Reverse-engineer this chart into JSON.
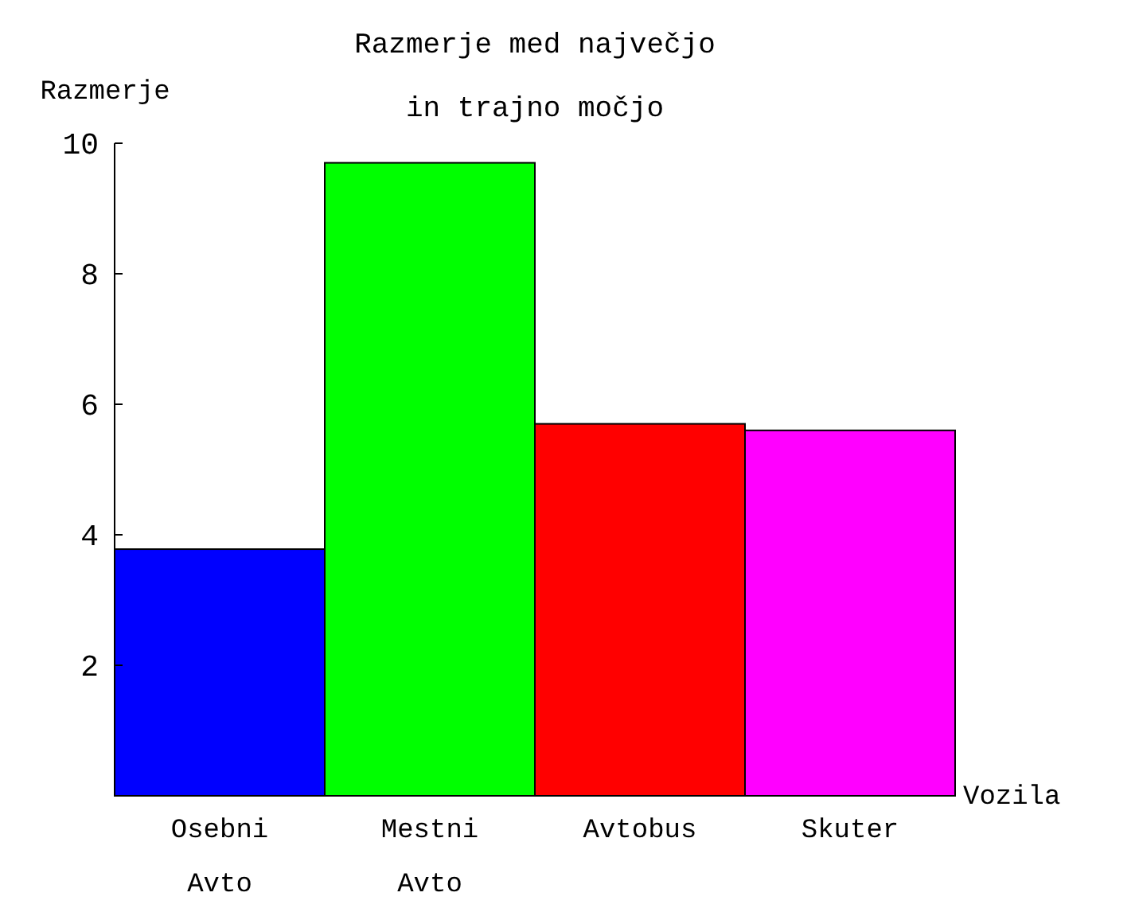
{
  "chart_data": {
    "type": "bar",
    "title": "Razmerje med največjo\nin trajno močjo",
    "xlabel": "Vozila",
    "ylabel": "Razmerje",
    "categories": [
      "Osebni Avto",
      "Mestni Avto",
      "Avtobus",
      "Skuter"
    ],
    "values": [
      3.78,
      9.7,
      5.7,
      5.6
    ],
    "colors": [
      "#0000ff",
      "#00ff00",
      "#ff0000",
      "#ff00ff"
    ],
    "ylim": [
      0,
      10
    ],
    "yticks": [
      2,
      4,
      6,
      8,
      10
    ],
    "grid": false
  }
}
